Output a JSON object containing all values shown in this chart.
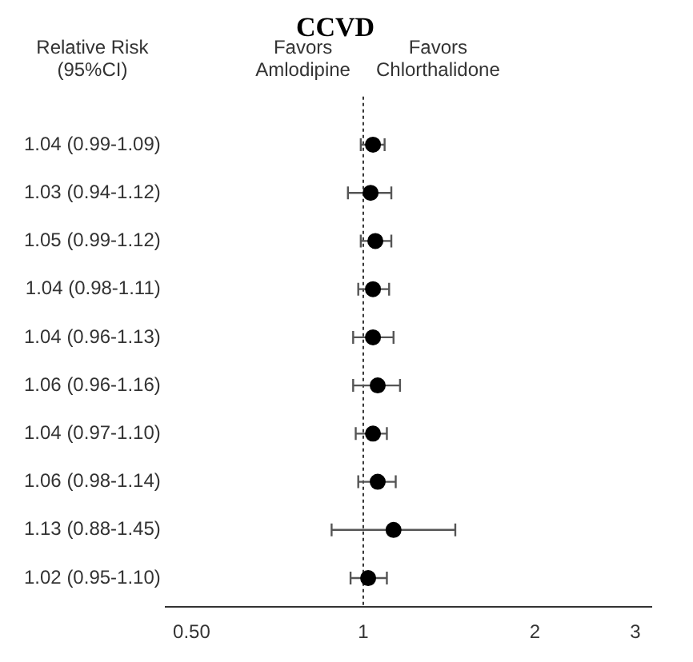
{
  "chart_data": {
    "type": "scatter",
    "orientation": "horizontal",
    "title": "CCVD",
    "ylabel": "Relative Risk (95%CI)",
    "annotations": [
      "Favors Amlodipine",
      "Favors Chlorthalidone"
    ],
    "categories": [
      "1.04 (0.99-1.09)",
      "1.03 (0.94-1.12)",
      "1.05 (0.99-1.12)",
      "1.04 (0.98-1.11)",
      "1.04 (0.96-1.13)",
      "1.06 (0.96-1.16)",
      "1.04 (0.97-1.10)",
      "1.06 (0.98-1.14)",
      "1.13 (0.88-1.45)",
      "1.02 (0.95-1.10)"
    ],
    "series": [
      {
        "color": "#000000",
        "values": [
          1.04,
          1.03,
          1.05,
          1.04,
          1.04,
          1.06,
          1.04,
          1.06,
          1.13,
          1.02
        ],
        "errors": [
          [
            0.99,
            1.09
          ],
          [
            0.94,
            1.12
          ],
          [
            0.99,
            1.12
          ],
          [
            0.98,
            1.11
          ],
          [
            0.96,
            1.13
          ],
          [
            0.96,
            1.16
          ],
          [
            0.97,
            1.1
          ],
          [
            0.98,
            1.14
          ],
          [
            0.88,
            1.45
          ],
          [
            0.95,
            1.1
          ]
        ]
      }
    ],
    "log": "x",
    "xlim": [
      0.45,
      3.2
    ],
    "xticks": [
      {
        "value": 0.5,
        "label": "0.50"
      },
      1,
      2,
      3
    ],
    "ref_lines": [
      {
        "axis": "x",
        "value": 1,
        "line_style": "dotted",
        "color": "#333333"
      }
    ],
    "grid": false,
    "legend": false,
    "marker": "circle"
  }
}
